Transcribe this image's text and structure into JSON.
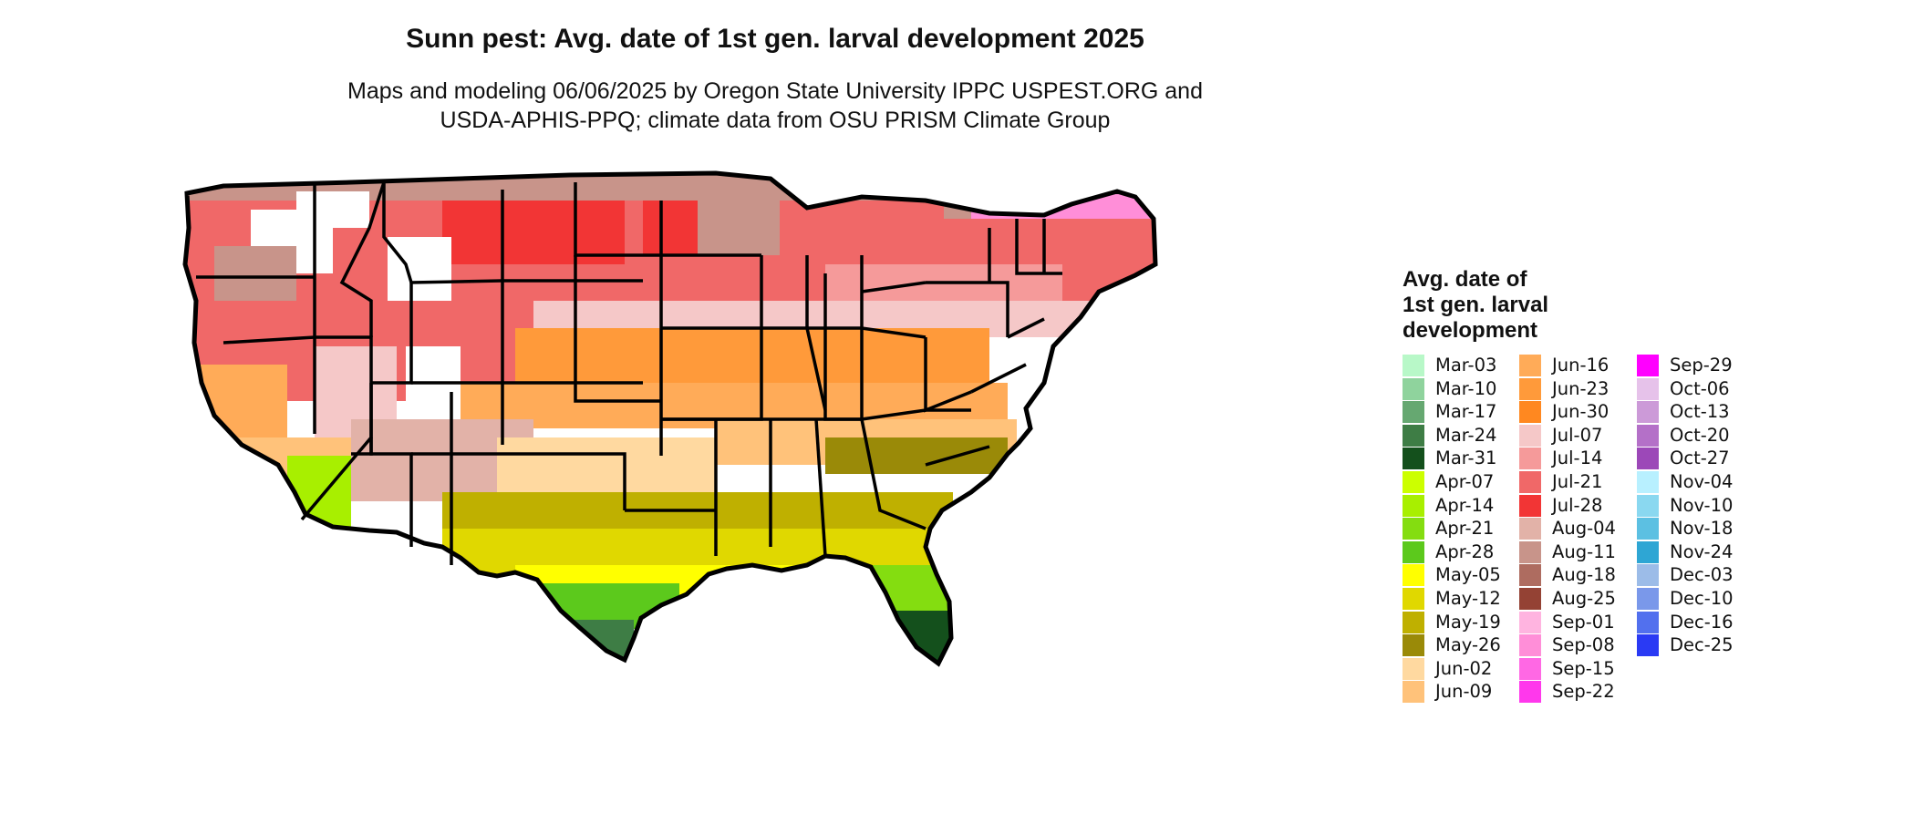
{
  "title": "Sunn pest: Avg. date of 1st gen. larval development 2025",
  "subtitle_line1": "Maps and modeling 06/06/2025 by Oregon State University IPPC USPEST.ORG and",
  "subtitle_line2": "USDA-APHIS-PPQ; climate data from OSU PRISM Climate Group",
  "legend": {
    "title_line1": "Avg. date of",
    "title_line2": "1st gen. larval",
    "title_line3": "development",
    "columns": [
      [
        {
          "label": "Mar-03",
          "color": "#b8f8c8"
        },
        {
          "label": "Mar-10",
          "color": "#8fd39d"
        },
        {
          "label": "Mar-17",
          "color": "#66a871"
        },
        {
          "label": "Mar-24",
          "color": "#3e7d45"
        },
        {
          "label": "Mar-31",
          "color": "#14501c"
        },
        {
          "label": "Apr-07",
          "color": "#ccff00"
        },
        {
          "label": "Apr-14",
          "color": "#a8ef00"
        },
        {
          "label": "Apr-21",
          "color": "#84dd10"
        },
        {
          "label": "Apr-28",
          "color": "#5cc91c"
        },
        {
          "label": "May-05",
          "color": "#ffff00"
        },
        {
          "label": "May-12",
          "color": "#e0d800"
        },
        {
          "label": "May-19",
          "color": "#bfb000"
        },
        {
          "label": "May-26",
          "color": "#9a8a08"
        },
        {
          "label": "Jun-02",
          "color": "#ffd9a0"
        },
        {
          "label": "Jun-09",
          "color": "#ffc27a"
        }
      ],
      [
        {
          "label": "Jun-16",
          "color": "#ffab58"
        },
        {
          "label": "Jun-23",
          "color": "#ff9a3a"
        },
        {
          "label": "Jun-30",
          "color": "#ff8820"
        },
        {
          "label": "Jul-07",
          "color": "#f5c8c8"
        },
        {
          "label": "Jul-14",
          "color": "#f59a9a"
        },
        {
          "label": "Jul-21",
          "color": "#f06868"
        },
        {
          "label": "Jul-28",
          "color": "#f23535"
        },
        {
          "label": "Aug-04",
          "color": "#e2b2a8"
        },
        {
          "label": "Aug-11",
          "color": "#c8948a"
        },
        {
          "label": "Aug-18",
          "color": "#ae6c60"
        },
        {
          "label": "Aug-25",
          "color": "#944234"
        },
        {
          "label": "Sep-01",
          "color": "#ffb4e0"
        },
        {
          "label": "Sep-08",
          "color": "#ff8ed8"
        },
        {
          "label": "Sep-15",
          "color": "#ff68e4"
        },
        {
          "label": "Sep-22",
          "color": "#ff38ec"
        }
      ],
      [
        {
          "label": "Sep-29",
          "color": "#ff00ff"
        },
        {
          "label": "Oct-06",
          "color": "#e6c2ea"
        },
        {
          "label": "Oct-13",
          "color": "#cc9ad8"
        },
        {
          "label": "Oct-20",
          "color": "#b470c8"
        },
        {
          "label": "Oct-27",
          "color": "#9c48b8"
        },
        {
          "label": "Nov-04",
          "color": "#b8f0ff"
        },
        {
          "label": "Nov-10",
          "color": "#8ad8f0"
        },
        {
          "label": "Nov-18",
          "color": "#5cc0e2"
        },
        {
          "label": "Nov-24",
          "color": "#2ea6d4"
        },
        {
          "label": "Dec-03",
          "color": "#9cbce8"
        },
        {
          "label": "Dec-10",
          "color": "#7a98ea"
        },
        {
          "label": "Dec-16",
          "color": "#5270ee"
        },
        {
          "label": "Dec-25",
          "color": "#2a3af4"
        }
      ]
    ]
  }
}
